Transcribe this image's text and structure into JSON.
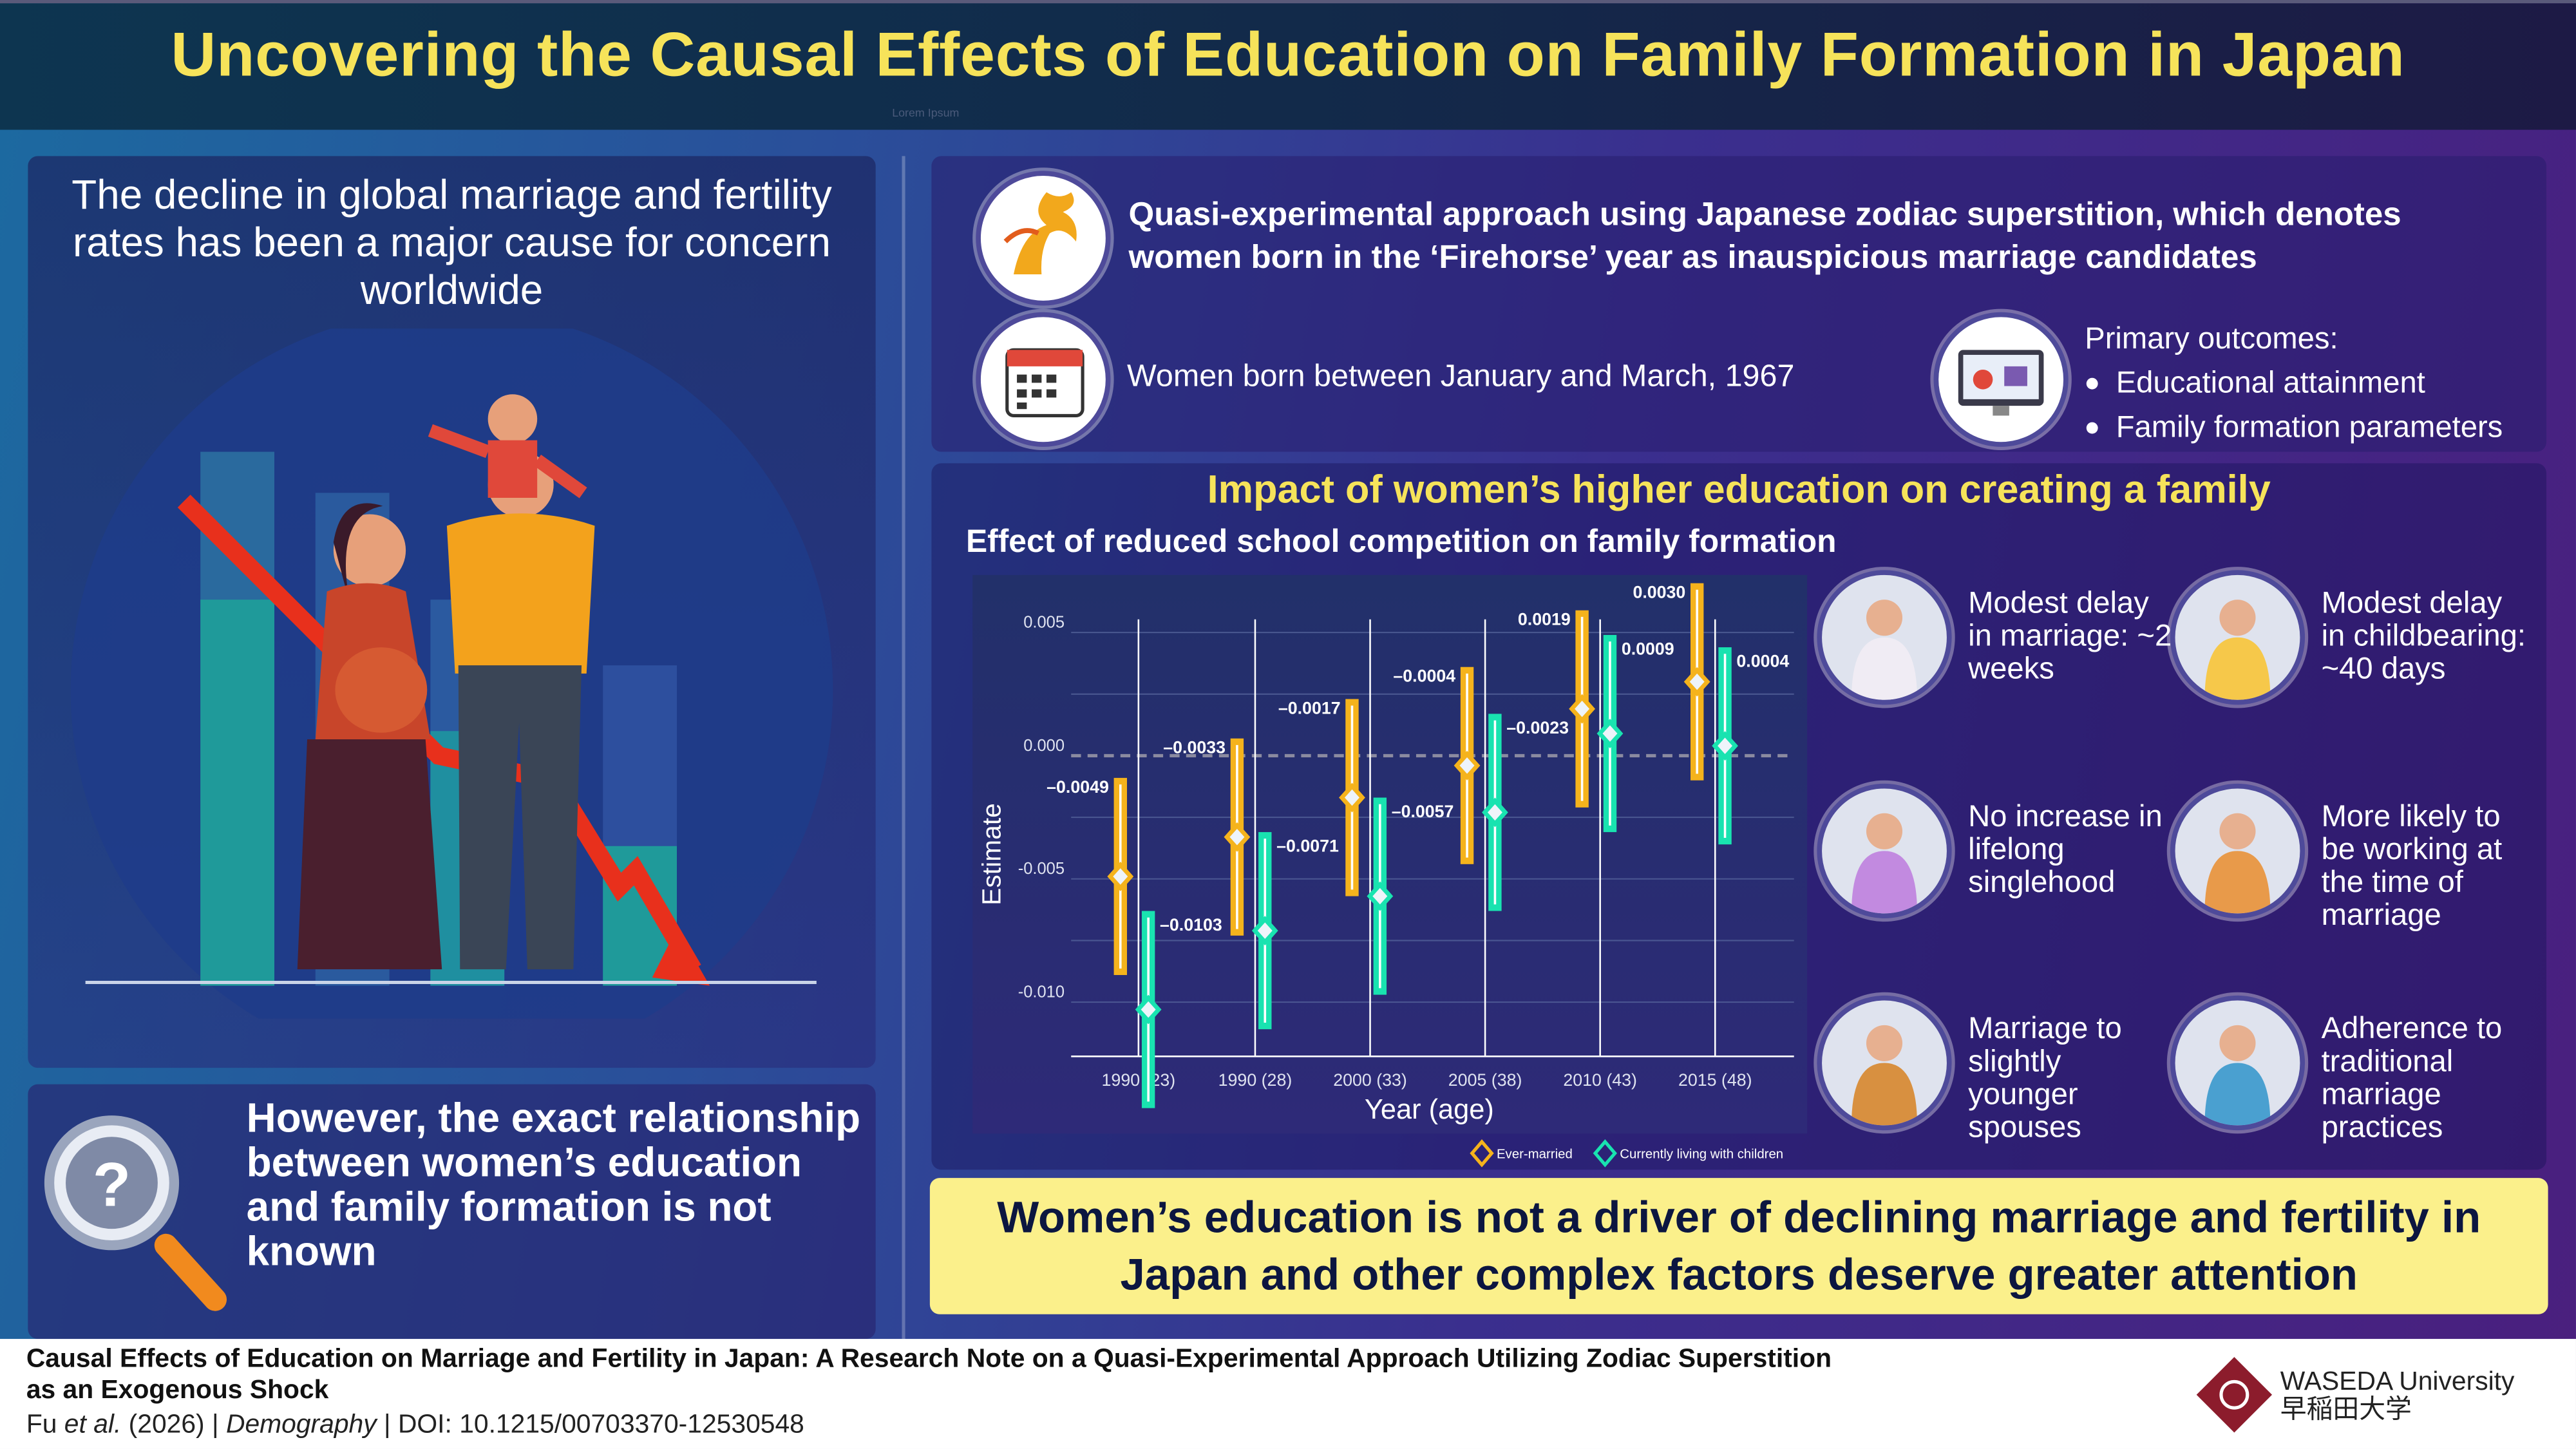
{
  "header": {
    "title": "Uncovering the Causal Effects of Education on Family Formation in Japan",
    "watermark": "Lorem Ipsum"
  },
  "left": {
    "top_text": "The decline in global marriage and fertility rates has been a major cause for concern worldwide",
    "bottom_text": "However, the exact relationship between women’s education and family formation is not known"
  },
  "method": {
    "approach": "Quasi-experimental approach using Japanese zodiac superstition, which denotes women born in the ‘Firehorse’ year as inauspicious marriage candidates",
    "sample": "Women born between January and March, 1967",
    "outcomes_title": "Primary outcomes:",
    "outcomes": [
      "Educational attainment",
      "Family formation parameters"
    ]
  },
  "results": {
    "heading": "Impact of women’s higher education on creating a family",
    "subheading": "Effect of reduced school competition on family formation",
    "findings": [
      "Modest delay in marriage: ~2 weeks",
      "Modest delay in childbearing: ~40 days",
      "No increase in lifelong singlehood",
      "More likely to be working at the time of marriage",
      "Marriage to slightly younger spouses",
      "Adherence to traditional marriage practices"
    ]
  },
  "conclusion": "Women’s education is not a driver of declining marriage and fertility in Japan and other complex factors deserve greater attention",
  "footer": {
    "title": "Causal Effects of Education on Marriage and Fertility in Japan: A Research Note on a Quasi-Experimental Approach Utilizing Zodiac Superstition as an Exogenous Shock",
    "authors": "Fu",
    "etal": "et al.",
    "year": "(2026) |",
    "journal": "Demography",
    "doi": "| DOI: 10.1215/00703370-12530548",
    "university": "WASEDA University",
    "university_jp": "早稲田大学"
  },
  "colors": {
    "ever_married": "#f5b31c",
    "living_with_children": "#19e3b0",
    "title": "#f6e35a",
    "conclusion_bg": "#fbf08b"
  },
  "chart_data": {
    "type": "scatter",
    "xlabel": "Year (age)",
    "ylabel": "Estimate",
    "categories": [
      "1990 (23)",
      "1990 (28)",
      "2000 (33)",
      "2005 (38)",
      "2010 (43)",
      "2015 (48)"
    ],
    "yticks": [
      "0.005",
      "0.000",
      "-0.005",
      "-0.010"
    ],
    "ytick_values": [
      0.005,
      0,
      -0.005,
      -0.01
    ],
    "ylim": [
      -0.0125,
      0.006
    ],
    "grid": true,
    "reference_line": 0,
    "legend_position": "bottom-right",
    "series": [
      {
        "name": "Ever-married",
        "values": [
          -0.0049,
          -0.0033,
          -0.0017,
          -0.0004,
          0.0019,
          0.003
        ],
        "labels": [
          "–0.0049",
          "–0.0033",
          "–0.0017",
          "–0.0004",
          "0.0019",
          "0.0030"
        ],
        "lower": [
          -0.0089,
          -0.0073,
          -0.0057,
          -0.0044,
          -0.0021,
          -0.001
        ],
        "upper": [
          -0.0009,
          0.0007,
          0.0023,
          0.0036,
          0.0059,
          0.007
        ]
      },
      {
        "name": "Currently living with children",
        "values": [
          -0.0103,
          -0.0071,
          -0.0057,
          -0.0023,
          0.0009,
          0.0004
        ],
        "labels": [
          "–0.0103",
          "–0.0071",
          "–0.0057",
          "–0.0023",
          "0.0009",
          "0.0004"
        ],
        "lower": [
          -0.0143,
          -0.0111,
          -0.0097,
          -0.0063,
          -0.0031,
          -0.0036
        ],
        "upper": [
          -0.0063,
          -0.0031,
          -0.0017,
          0.0017,
          0.0049,
          0.0044
        ]
      }
    ]
  }
}
